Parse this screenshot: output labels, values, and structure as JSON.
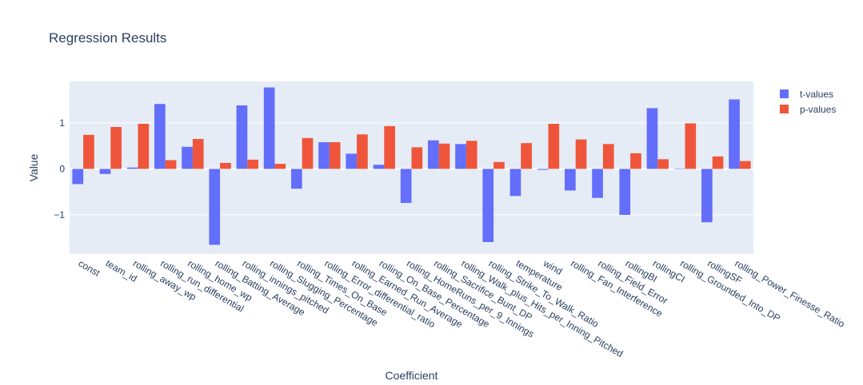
{
  "chart_data": {
    "type": "bar",
    "title": "Regression Results",
    "xlabel": "Coefficient",
    "ylabel": "Value",
    "ylim": [
      -1.85,
      1.9
    ],
    "yticks": [
      -1,
      0,
      1
    ],
    "ytick_labels": [
      "−1",
      "0",
      "1"
    ],
    "grid": true,
    "legend_position": "top-right",
    "categories": [
      "const",
      "team_id",
      "rolling_away_wp",
      "rolling_run_differential",
      "rolling_home_wp",
      "rolling_Batting_Average",
      "rolling_innings_pitched",
      "rolling_Slugging_Percentage",
      "rolling_Times_On_Base",
      "rolling_Error_differential_ratio",
      "rolling_Earned_Run_Average",
      "rolling_On_Base_Percentage",
      "rolling_HomeRuns_per_9_Innings",
      "rolling_Sacrifice_Bunt_DP",
      "rolling_Walk_plus_Hits_per_Inning_Pitched",
      "rolling_Strike_To_Walk_Ratio",
      "temperature",
      "wind",
      "rolling_Fan_Interference",
      "rolling_Field_Error",
      "rollingBI",
      "rollingCI",
      "rolling_Grounded_Into_DP",
      "rollingSF",
      "rolling_Power_Finesse_Ratio"
    ],
    "series": [
      {
        "name": "t-values",
        "color": "#636efa",
        "values": [
          -0.33,
          -0.11,
          0.03,
          1.41,
          0.48,
          -1.65,
          1.38,
          1.77,
          -0.43,
          0.58,
          0.33,
          0.09,
          -0.74,
          0.62,
          0.54,
          -1.59,
          -0.59,
          -0.02,
          -0.47,
          -0.63,
          -1.0,
          1.32,
          0.01,
          -1.16,
          1.51
        ]
      },
      {
        "name": "p-values",
        "color": "#ef553b",
        "values": [
          0.74,
          0.91,
          0.98,
          0.19,
          0.65,
          0.13,
          0.2,
          0.11,
          0.67,
          0.58,
          0.75,
          0.93,
          0.47,
          0.55,
          0.61,
          0.15,
          0.56,
          0.98,
          0.64,
          0.54,
          0.34,
          0.21,
          0.99,
          0.27,
          0.17
        ]
      }
    ]
  }
}
